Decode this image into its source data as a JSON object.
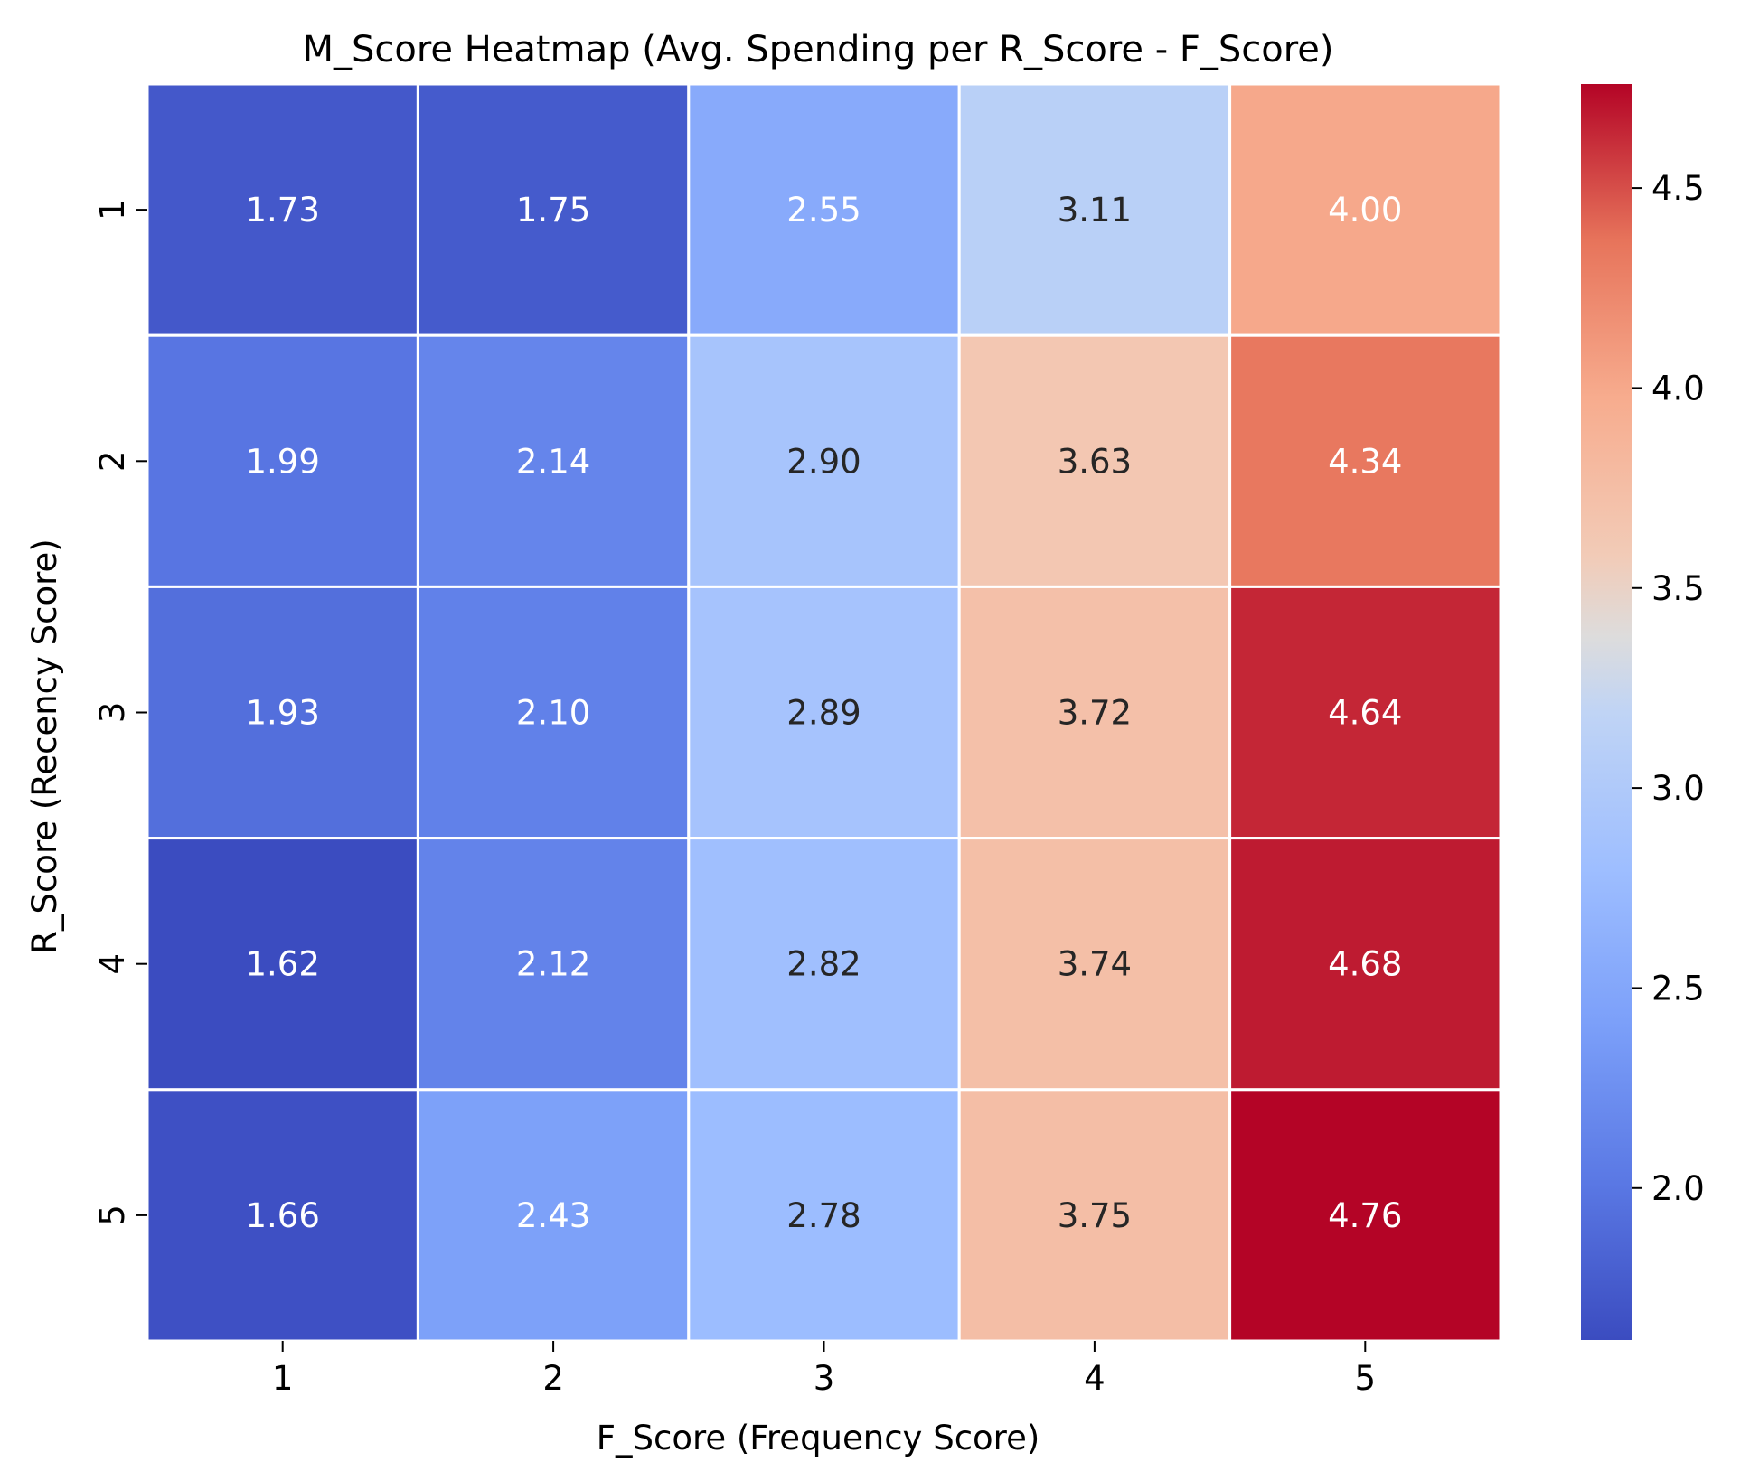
{
  "chart_data": {
    "type": "heatmap",
    "title": "M_Score Heatmap (Avg. Spending per R_Score - F_Score)",
    "xlabel": "F_Score (Frequency Score)",
    "ylabel": "R_Score (Recency Score)",
    "x_categories": [
      "1",
      "2",
      "3",
      "4",
      "5"
    ],
    "y_categories": [
      "1",
      "2",
      "3",
      "4",
      "5"
    ],
    "values": [
      [
        1.73,
        1.75,
        2.55,
        3.11,
        4.0
      ],
      [
        1.99,
        2.14,
        2.9,
        3.63,
        4.34
      ],
      [
        1.93,
        2.1,
        2.89,
        3.72,
        4.64
      ],
      [
        1.62,
        2.12,
        2.82,
        3.74,
        4.68
      ],
      [
        1.66,
        2.43,
        2.78,
        3.75,
        4.76
      ]
    ],
    "value_labels": [
      [
        "1.73",
        "1.75",
        "2.55",
        "3.11",
        "4.00"
      ],
      [
        "1.99",
        "2.14",
        "2.90",
        "3.63",
        "4.34"
      ],
      [
        "1.93",
        "2.10",
        "2.89",
        "3.72",
        "4.64"
      ],
      [
        "1.62",
        "2.12",
        "2.82",
        "3.74",
        "4.68"
      ],
      [
        "1.66",
        "2.43",
        "2.78",
        "3.75",
        "4.76"
      ]
    ],
    "colormap": "coolwarm",
    "colorbar": {
      "range": [
        1.62,
        4.76
      ],
      "ticks": [
        2.0,
        2.5,
        3.0,
        3.5,
        4.0,
        4.5
      ],
      "tick_labels": [
        "2.0",
        "2.5",
        "3.0",
        "3.5",
        "4.0",
        "4.5"
      ]
    },
    "cell_border_color": "#ffffff",
    "text_colors": {
      "light": "#ffffff",
      "dark": "#262626"
    }
  }
}
